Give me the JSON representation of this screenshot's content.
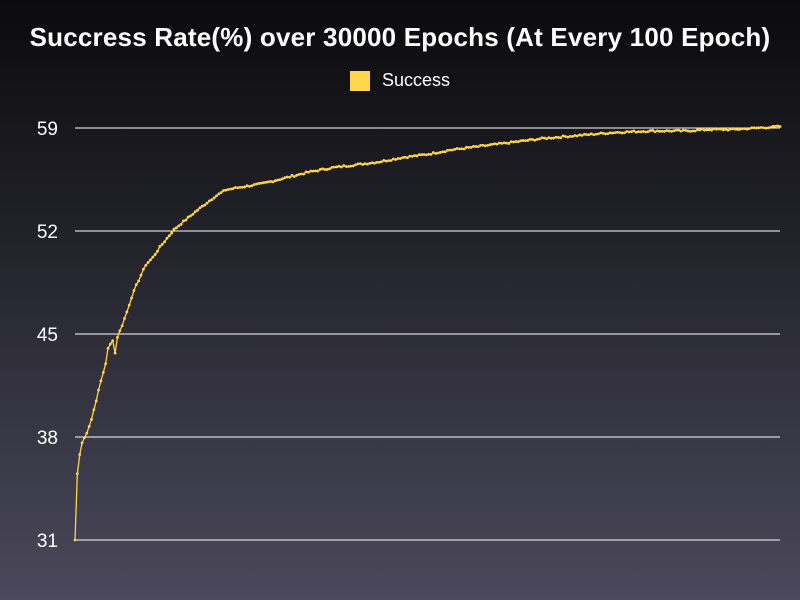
{
  "chart_data": {
    "type": "line",
    "title": "Succress Rate(%) over 30000 Epochs (At Every 100 Epoch)",
    "xlabel": "",
    "ylabel": "",
    "ylim": [
      31,
      59
    ],
    "yticks": [
      "31",
      "38",
      "45",
      "52",
      "59"
    ],
    "xlim": [
      1,
      300
    ],
    "grid": true,
    "legend": "top-center",
    "series": [
      {
        "name": "Success",
        "color": "#ffd54a",
        "anchors": [
          [
            1,
            31.0
          ],
          [
            2,
            35.5
          ],
          [
            3,
            36.8
          ],
          [
            4,
            37.6
          ],
          [
            6,
            38.3
          ],
          [
            8,
            39.2
          ],
          [
            10,
            40.5
          ],
          [
            12,
            41.8
          ],
          [
            14,
            43.0
          ],
          [
            15,
            44.0
          ],
          [
            17,
            44.6
          ],
          [
            18,
            43.7
          ],
          [
            19,
            44.8
          ],
          [
            21,
            45.6
          ],
          [
            23,
            46.5
          ],
          [
            25,
            47.5
          ],
          [
            27,
            48.3
          ],
          [
            29,
            49.0
          ],
          [
            31,
            49.7
          ],
          [
            34,
            50.2
          ],
          [
            37,
            50.9
          ],
          [
            40,
            51.5
          ],
          [
            43,
            52.1
          ],
          [
            46,
            52.5
          ],
          [
            49,
            52.9
          ],
          [
            52,
            53.3
          ],
          [
            56,
            53.8
          ],
          [
            60,
            54.3
          ],
          [
            65,
            54.8
          ],
          [
            72,
            55.0
          ],
          [
            80,
            55.2
          ],
          [
            90,
            55.6
          ],
          [
            100,
            56.0
          ],
          [
            110,
            56.3
          ],
          [
            120,
            56.5
          ],
          [
            130,
            56.7
          ],
          [
            140,
            57.0
          ],
          [
            150,
            57.2
          ],
          [
            160,
            57.5
          ],
          [
            170,
            57.7
          ],
          [
            180,
            57.9
          ],
          [
            190,
            58.1
          ],
          [
            200,
            58.3
          ],
          [
            215,
            58.5
          ],
          [
            230,
            58.7
          ],
          [
            245,
            58.8
          ],
          [
            260,
            58.8
          ],
          [
            270,
            58.9
          ],
          [
            280,
            58.9
          ],
          [
            290,
            59.0
          ],
          [
            300,
            59.1
          ]
        ]
      }
    ]
  }
}
